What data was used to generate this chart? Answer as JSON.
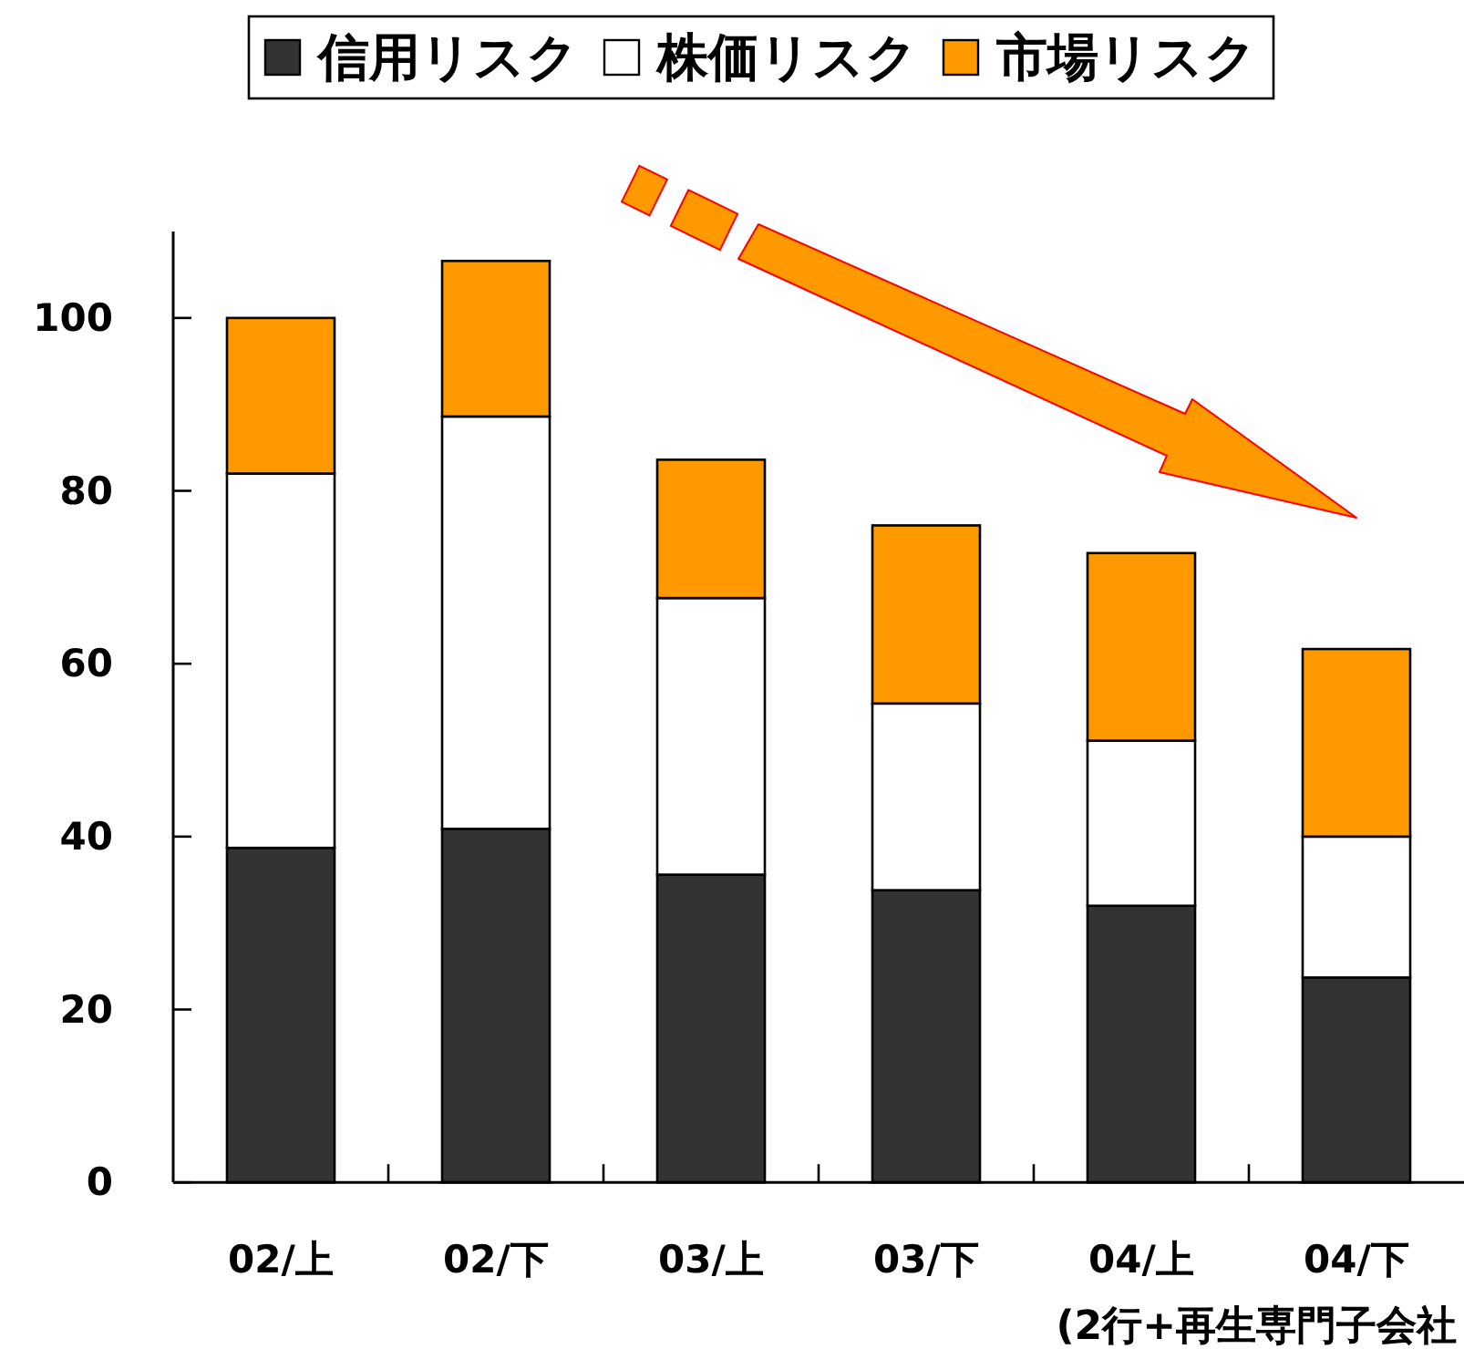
{
  "chart_data": {
    "type": "bar",
    "stacked": true,
    "categories": [
      "02/上",
      "02/下",
      "03/上",
      "03/下",
      "04/上",
      "04/下"
    ],
    "series": [
      {
        "name": "信用リスク",
        "color": "#333333",
        "values": [
          38.7,
          40.9,
          35.6,
          33.8,
          32.0,
          23.7
        ]
      },
      {
        "name": "株価リスク",
        "color": "#ffffff",
        "values": [
          43.3,
          47.7,
          32.0,
          21.6,
          19.1,
          16.3
        ]
      },
      {
        "name": "市場リスク",
        "color": "#ff9900",
        "values": [
          18.0,
          18.0,
          16.0,
          20.6,
          21.7,
          21.7
        ]
      }
    ],
    "ylim": [
      0,
      110
    ],
    "yticks": [
      0,
      20,
      40,
      60,
      80,
      100
    ],
    "legend": "top",
    "annotations": [
      "(2行+再生専門子会社"
    ]
  }
}
